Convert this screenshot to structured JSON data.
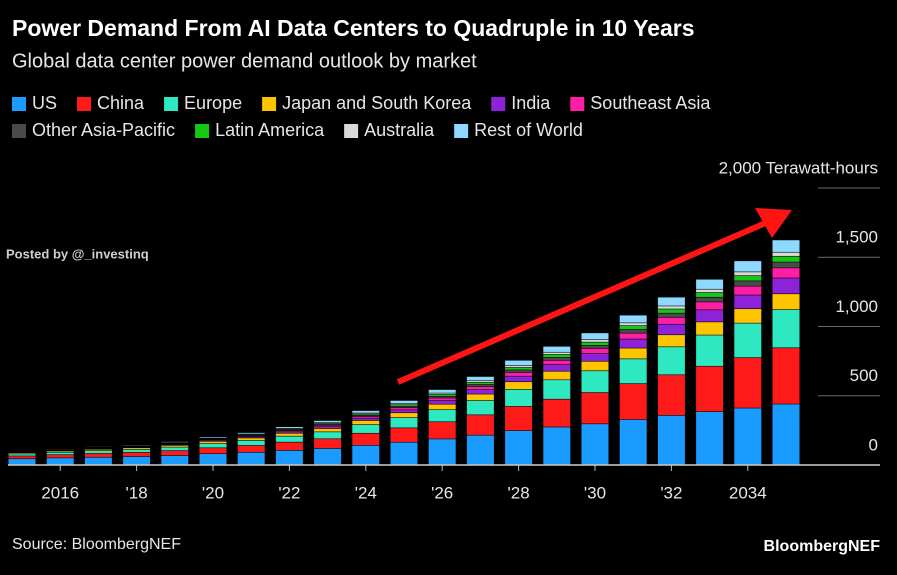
{
  "chart_data": {
    "type": "stacked-bar",
    "title": "Power Demand From AI Data Centers to Quadruple in 10 Years",
    "subtitle": "Global data center power demand outlook by market",
    "watermark": "Posted by @_investinq",
    "source": "Source: BloombergNEF",
    "brand": "BloombergNEF",
    "categories": [
      null,
      "2016",
      null,
      "'18",
      null,
      "'20",
      null,
      "'22",
      null,
      "'24",
      null,
      "'26",
      null,
      "'28",
      null,
      "'30",
      null,
      "'32",
      null,
      "2034",
      null
    ],
    "ylim": [
      0,
      2000
    ],
    "yticks": [
      0,
      500,
      {
        "value": 1000,
        "label": "1,000"
      },
      {
        "value": 1500,
        "label": "1,500"
      },
      {
        "value": 2000,
        "label": "2,000 Terawatt-hours"
      }
    ],
    "series": [
      {
        "name": "US",
        "color": "#1a9bff",
        "values": [
          43,
          49,
          54,
          59,
          66,
          79,
          89,
          103,
          117,
          140,
          162,
          186,
          213,
          246,
          272,
          295,
          326,
          356,
          383,
          409,
          438
        ]
      },
      {
        "name": "China",
        "color": "#ff1a1a",
        "values": [
          20,
          23,
          27,
          30,
          35,
          43,
          50,
          60,
          70,
          87,
          104,
          124,
          147,
          175,
          201,
          226,
          259,
          293,
          328,
          364,
          406
        ]
      },
      {
        "name": "Europe",
        "color": "#2de8c0",
        "values": [
          15,
          18,
          20,
          22,
          26,
          31,
          36,
          43,
          50,
          62,
          74,
          87,
          103,
          123,
          140,
          157,
          179,
          202,
          225,
          249,
          276
        ]
      },
      {
        "name": "Japan and South Korea",
        "color": "#ffc400",
        "values": [
          8,
          9,
          10,
          11,
          13,
          16,
          18,
          21,
          24,
          30,
          35,
          40,
          47,
          55,
          62,
          69,
          78,
          87,
          95,
          104,
          114
        ]
      },
      {
        "name": "India",
        "color": "#8e22d8",
        "values": [
          2,
          3,
          3,
          4,
          5,
          7,
          8,
          10,
          13,
          17,
          21,
          26,
          32,
          40,
          47,
          55,
          65,
          76,
          87,
          99,
          114
        ]
      },
      {
        "name": "Southeast Asia",
        "color": "#ff1fa5",
        "values": [
          2,
          2,
          3,
          3,
          4,
          5,
          6,
          8,
          10,
          12,
          15,
          18,
          22,
          27,
          32,
          37,
          43,
          50,
          57,
          64,
          73
        ]
      },
      {
        "name": "Other Asia-Pacific",
        "color": "#4a4a4a",
        "values": [
          2,
          2,
          3,
          3,
          4,
          4,
          5,
          6,
          7,
          9,
          11,
          13,
          15,
          18,
          21,
          23,
          27,
          30,
          34,
          38,
          42
        ]
      },
      {
        "name": "Latin America",
        "color": "#16c716",
        "values": [
          2,
          2,
          3,
          3,
          4,
          4,
          5,
          6,
          7,
          9,
          11,
          13,
          15,
          18,
          21,
          23,
          27,
          30,
          34,
          38,
          42
        ]
      },
      {
        "name": "Australia",
        "color": "#d9d9d9",
        "values": [
          2,
          2,
          3,
          3,
          3,
          4,
          5,
          5,
          6,
          7,
          9,
          10,
          12,
          14,
          16,
          18,
          20,
          22,
          24,
          27,
          29
        ]
      },
      {
        "name": "Rest of World",
        "color": "#8dd9ff",
        "values": [
          4,
          5,
          5,
          6,
          7,
          9,
          10,
          12,
          15,
          18,
          22,
          26,
          31,
          38,
          43,
          49,
          56,
          64,
          72,
          80,
          89
        ]
      }
    ]
  }
}
